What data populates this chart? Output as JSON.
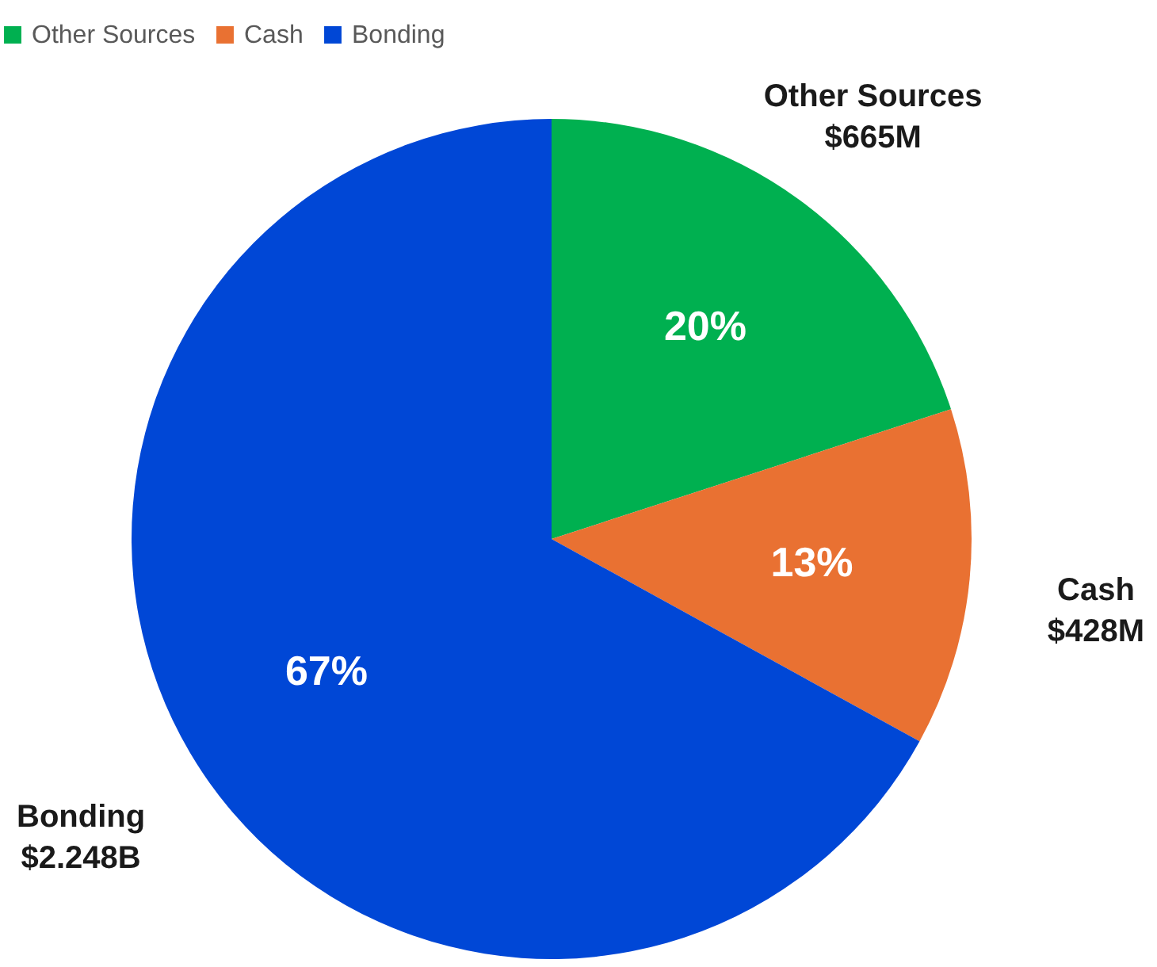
{
  "chart_data": {
    "type": "pie",
    "categories": [
      "Other Sources",
      "Cash",
      "Bonding"
    ],
    "values": [
      20,
      13,
      67
    ],
    "value_labels": [
      "20%",
      "13%",
      "67%"
    ],
    "colors": [
      "#00b050",
      "#e97132",
      "#0047d6"
    ],
    "annotations": [
      "$665M",
      "$428M",
      "$2.248B"
    ],
    "legend": "top"
  }
}
